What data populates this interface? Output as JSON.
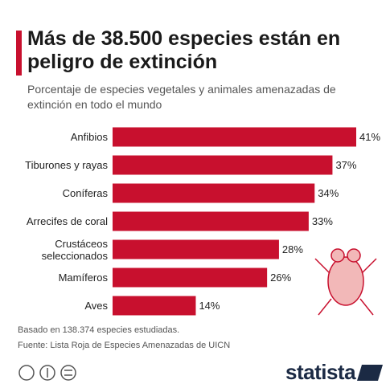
{
  "chart_data": {
    "type": "bar",
    "orientation": "horizontal",
    "title": "Más de 38.500 especies están en peligro de extinción",
    "subtitle": "Porcentaje de especies vegetales y animales amenazadas de extinción en todo el mundo",
    "categories": [
      "Anfibios",
      "Tiburones y rayas",
      "Coníferas",
      "Arrecifes de coral",
      "Crustáceos seleccionados",
      "Mamíferos",
      "Aves"
    ],
    "values": [
      41,
      37,
      34,
      33,
      28,
      26,
      14
    ],
    "value_labels": [
      "41%",
      "37%",
      "34%",
      "33%",
      "28%",
      "26%",
      "14%"
    ],
    "color": "#c8102e",
    "notes": [
      "Basado en 138.374 especies estudiadas.",
      "Fuente: Lista Roja de Especies Amenazadas de UICN"
    ],
    "brand": "statista"
  }
}
